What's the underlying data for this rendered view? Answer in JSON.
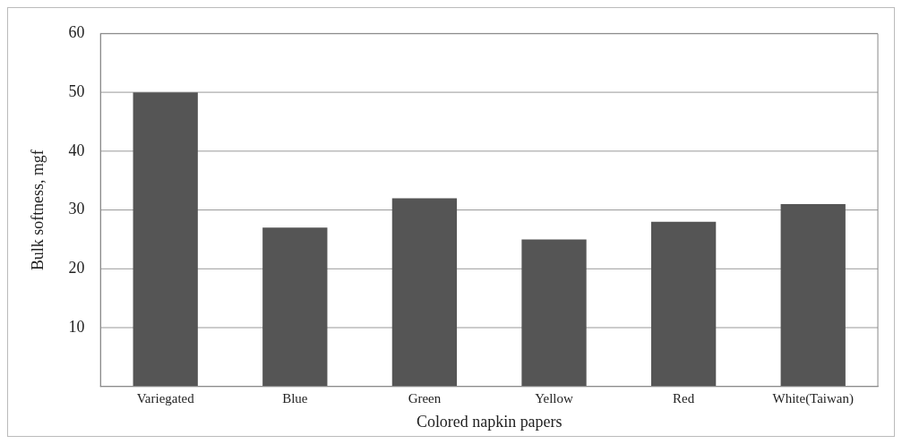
{
  "chart_data": {
    "type": "bar",
    "xlabel": "Colored napkin papers",
    "ylabel": "Bulk softness, mgf",
    "categories": [
      "Variegated",
      "Blue",
      "Green",
      "Yellow",
      "Red",
      "White(Taiwan)"
    ],
    "series": [
      {
        "color": "#555555",
        "values": [
          50,
          27,
          32,
          25,
          28,
          31
        ]
      }
    ],
    "ylim": [
      0,
      60
    ],
    "yticks": [
      10,
      20,
      30,
      40,
      50,
      60
    ],
    "grid": "y",
    "legend": false
  }
}
